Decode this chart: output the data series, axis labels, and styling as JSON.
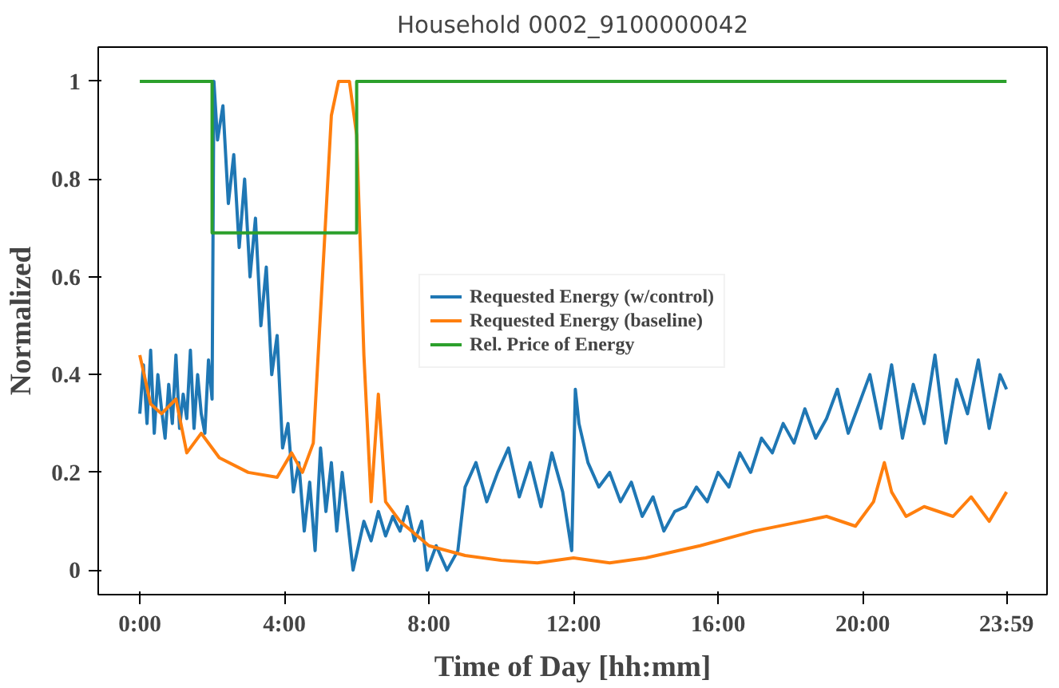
{
  "chart_data": {
    "type": "line",
    "title": "Household 0002_9100000042",
    "xlabel": "Time of Day [hh:mm]",
    "ylabel": "Normalized",
    "xlim": [
      -1.15,
      25.1
    ],
    "ylim": [
      -0.05,
      1.07
    ],
    "xticks": [
      {
        "value": 0,
        "label": "0:00"
      },
      {
        "value": 4,
        "label": "4:00"
      },
      {
        "value": 8,
        "label": "8:00"
      },
      {
        "value": 12,
        "label": "12:00"
      },
      {
        "value": 16,
        "label": "16:00"
      },
      {
        "value": 20,
        "label": "20:00"
      },
      {
        "value": 23.98,
        "label": "23:59"
      }
    ],
    "yticks": [
      0,
      0.2,
      0.4,
      0.6,
      0.8,
      1
    ],
    "grid": false,
    "legend": "center",
    "line_style": "solid",
    "series": [
      {
        "name": "Requested Energy (w/control)",
        "color": "#1f77b4",
        "x": [
          0,
          0.1,
          0.2,
          0.3,
          0.4,
          0.5,
          0.6,
          0.7,
          0.8,
          0.9,
          1.0,
          1.1,
          1.2,
          1.3,
          1.4,
          1.5,
          1.6,
          1.7,
          1.8,
          1.9,
          2.0,
          2.05,
          2.15,
          2.3,
          2.45,
          2.6,
          2.75,
          2.9,
          3.05,
          3.2,
          3.35,
          3.5,
          3.65,
          3.8,
          3.95,
          4.1,
          4.25,
          4.4,
          4.55,
          4.7,
          4.85,
          5.0,
          5.15,
          5.3,
          5.45,
          5.6,
          5.75,
          5.9,
          6.05,
          6.2,
          6.4,
          6.6,
          6.8,
          7.0,
          7.2,
          7.4,
          7.6,
          7.8,
          7.95,
          8.2,
          8.5,
          8.8,
          9.0,
          9.3,
          9.6,
          9.9,
          10.2,
          10.5,
          10.8,
          11.1,
          11.4,
          11.7,
          11.95,
          12.05,
          12.15,
          12.4,
          12.7,
          13.0,
          13.3,
          13.6,
          13.9,
          14.2,
          14.5,
          14.8,
          15.1,
          15.4,
          15.7,
          16.0,
          16.3,
          16.6,
          16.9,
          17.2,
          17.5,
          17.8,
          18.1,
          18.4,
          18.7,
          19.0,
          19.3,
          19.6,
          19.9,
          20.2,
          20.5,
          20.8,
          21.1,
          21.4,
          21.7,
          22.0,
          22.3,
          22.6,
          22.9,
          23.2,
          23.5,
          23.8,
          23.98
        ],
        "values": [
          0.32,
          0.42,
          0.3,
          0.45,
          0.28,
          0.4,
          0.33,
          0.27,
          0.38,
          0.3,
          0.44,
          0.29,
          0.36,
          0.31,
          0.45,
          0.29,
          0.4,
          0.32,
          0.28,
          0.43,
          0.35,
          1.0,
          0.88,
          0.95,
          0.75,
          0.85,
          0.66,
          0.8,
          0.6,
          0.72,
          0.5,
          0.62,
          0.4,
          0.48,
          0.25,
          0.3,
          0.16,
          0.22,
          0.08,
          0.18,
          0.04,
          0.25,
          0.12,
          0.22,
          0.08,
          0.2,
          0.1,
          0.0,
          0.05,
          0.1,
          0.06,
          0.12,
          0.07,
          0.11,
          0.08,
          0.13,
          0.06,
          0.1,
          0.0,
          0.05,
          0.0,
          0.04,
          0.17,
          0.22,
          0.14,
          0.2,
          0.25,
          0.15,
          0.22,
          0.13,
          0.24,
          0.16,
          0.04,
          0.37,
          0.3,
          0.22,
          0.17,
          0.2,
          0.14,
          0.18,
          0.11,
          0.15,
          0.08,
          0.12,
          0.13,
          0.17,
          0.14,
          0.2,
          0.17,
          0.24,
          0.2,
          0.27,
          0.24,
          0.3,
          0.26,
          0.33,
          0.27,
          0.31,
          0.37,
          0.28,
          0.34,
          0.4,
          0.29,
          0.42,
          0.27,
          0.38,
          0.3,
          0.44,
          0.26,
          0.39,
          0.32,
          0.43,
          0.29,
          0.4,
          0.37
        ]
      },
      {
        "name": "Requested Energy (baseline)",
        "color": "#ff7f0e",
        "x": [
          0,
          0.3,
          0.6,
          1.0,
          1.3,
          1.7,
          2.2,
          3.0,
          3.8,
          4.2,
          4.5,
          4.8,
          5.1,
          5.3,
          5.5,
          5.8,
          6.0,
          6.2,
          6.4,
          6.6,
          6.8,
          7.2,
          8.0,
          9.0,
          10.0,
          11.0,
          12.0,
          13.0,
          14.0,
          15.5,
          17.0,
          19.0,
          19.8,
          20.3,
          20.6,
          20.8,
          21.2,
          21.7,
          22.5,
          23.0,
          23.5,
          23.98
        ],
        "values": [
          0.44,
          0.34,
          0.32,
          0.35,
          0.24,
          0.28,
          0.23,
          0.2,
          0.19,
          0.24,
          0.2,
          0.26,
          0.66,
          0.93,
          1.0,
          1.0,
          0.89,
          0.44,
          0.14,
          0.36,
          0.14,
          0.1,
          0.05,
          0.03,
          0.02,
          0.015,
          0.025,
          0.015,
          0.025,
          0.05,
          0.08,
          0.11,
          0.09,
          0.14,
          0.22,
          0.16,
          0.11,
          0.13,
          0.11,
          0.15,
          0.1,
          0.16
        ]
      },
      {
        "name": "Rel. Price of Energy",
        "color": "#2ca02c",
        "x": [
          0,
          2,
          2,
          6,
          6,
          23.98
        ],
        "values": [
          1,
          1,
          0.69,
          0.69,
          1,
          1
        ]
      }
    ]
  }
}
